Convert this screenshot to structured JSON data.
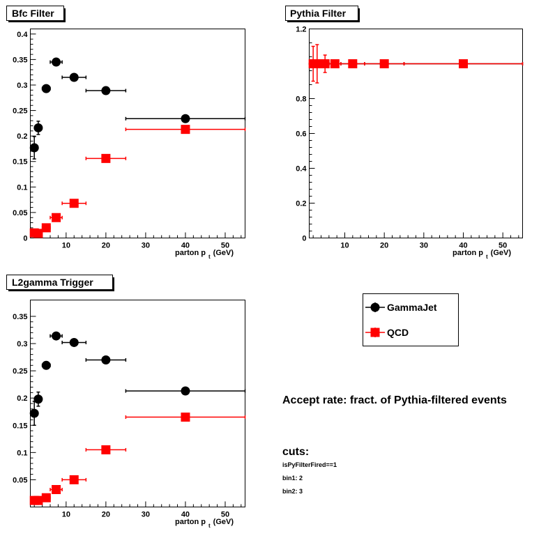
{
  "chart_data": [
    {
      "type": "scatter",
      "title": "Bfc Filter",
      "xlabel": "parton p",
      "xlabel_sub": "t",
      "xlabel_unit": "(GeV)",
      "ylabel": "",
      "xlim": [
        1,
        55
      ],
      "ylim": [
        0,
        0.41
      ],
      "xticks": [
        10,
        20,
        30,
        40,
        50
      ],
      "yticks": [
        0,
        0.05,
        0.1,
        0.15,
        0.2,
        0.25,
        0.3,
        0.35,
        0.4
      ],
      "ytick_labels": [
        "0",
        "0.05",
        "0.1",
        "0.15",
        "0.2",
        "0.25",
        "0.3",
        "0.35",
        "0.4"
      ],
      "series": [
        {
          "name": "GammaJet",
          "marker": "circle",
          "color": "#000000",
          "points": [
            {
              "x": 2.0,
              "xlo": 1.5,
              "xhi": 2.5,
              "y": 0.177,
              "yerr": 0.022
            },
            {
              "x": 3.0,
              "xlo": 2.5,
              "xhi": 3.5,
              "y": 0.216,
              "yerr": 0.013
            },
            {
              "x": 5.0,
              "xlo": 4.0,
              "xhi": 6.0,
              "y": 0.293,
              "yerr": 0.005
            },
            {
              "x": 7.5,
              "xlo": 6.0,
              "xhi": 9.0,
              "y": 0.345,
              "yerr": 0.004
            },
            {
              "x": 12.0,
              "xlo": 9.0,
              "xhi": 15.0,
              "y": 0.315,
              "yerr": 0.004
            },
            {
              "x": 20.0,
              "xlo": 15.0,
              "xhi": 25.0,
              "y": 0.289,
              "yerr": 0.003
            },
            {
              "x": 40.0,
              "xlo": 25.0,
              "xhi": 55.0,
              "y": 0.234,
              "yerr": 0.002
            }
          ]
        },
        {
          "name": "QCD",
          "marker": "square",
          "color": "#ff0000",
          "points": [
            {
              "x": 2.0,
              "xlo": 1.5,
              "xhi": 2.5,
              "y": 0.01,
              "yerr": 0.002
            },
            {
              "x": 3.0,
              "xlo": 2.5,
              "xhi": 3.5,
              "y": 0.009,
              "yerr": 0.002
            },
            {
              "x": 5.0,
              "xlo": 4.0,
              "xhi": 6.0,
              "y": 0.02,
              "yerr": 0.002
            },
            {
              "x": 7.5,
              "xlo": 6.0,
              "xhi": 9.0,
              "y": 0.04,
              "yerr": 0.003
            },
            {
              "x": 12.0,
              "xlo": 9.0,
              "xhi": 15.0,
              "y": 0.068,
              "yerr": 0.003
            },
            {
              "x": 20.0,
              "xlo": 15.0,
              "xhi": 25.0,
              "y": 0.156,
              "yerr": 0.003
            },
            {
              "x": 40.0,
              "xlo": 25.0,
              "xhi": 55.0,
              "y": 0.213,
              "yerr": 0.002
            }
          ]
        }
      ]
    },
    {
      "type": "scatter",
      "title": "Pythia Filter",
      "xlabel": "parton p",
      "xlabel_sub": "t",
      "xlabel_unit": "(GeV)",
      "ylabel": "",
      "xlim": [
        1,
        55
      ],
      "ylim": [
        0,
        1.2
      ],
      "xticks": [
        10,
        20,
        30,
        40,
        50
      ],
      "yticks": [
        0,
        0.2,
        0.4,
        0.6,
        0.8,
        1.2
      ],
      "ytick_labels": [
        "0",
        "0.2",
        "0.4",
        "0.6",
        "0.8",
        "1.2"
      ],
      "series": [
        {
          "name": "GammaJet",
          "marker": "circle",
          "color": "#000000",
          "points": [
            {
              "x": 2.0,
              "xlo": 1.5,
              "xhi": 2.5,
              "y": 1.0,
              "yerr": 0.0
            },
            {
              "x": 3.0,
              "xlo": 2.5,
              "xhi": 3.5,
              "y": 1.0,
              "yerr": 0.0
            },
            {
              "x": 5.0,
              "xlo": 4.0,
              "xhi": 6.0,
              "y": 1.0,
              "yerr": 0.0
            },
            {
              "x": 7.5,
              "xlo": 6.0,
              "xhi": 9.0,
              "y": 1.0,
              "yerr": 0.0
            },
            {
              "x": 12.0,
              "xlo": 9.0,
              "xhi": 15.0,
              "y": 1.0,
              "yerr": 0.0
            },
            {
              "x": 20.0,
              "xlo": 15.0,
              "xhi": 25.0,
              "y": 1.0,
              "yerr": 0.0
            },
            {
              "x": 40.0,
              "xlo": 25.0,
              "xhi": 55.0,
              "y": 1.0,
              "yerr": 0.0
            }
          ]
        },
        {
          "name": "QCD",
          "marker": "square",
          "color": "#ff0000",
          "points": [
            {
              "x": 2.0,
              "xlo": 1.5,
              "xhi": 2.5,
              "y": 1.0,
              "yerr": 0.1
            },
            {
              "x": 3.0,
              "xlo": 2.5,
              "xhi": 3.5,
              "y": 1.0,
              "yerr": 0.11
            },
            {
              "x": 5.0,
              "xlo": 4.0,
              "xhi": 6.0,
              "y": 1.0,
              "yerr": 0.05
            },
            {
              "x": 7.5,
              "xlo": 6.0,
              "xhi": 9.0,
              "y": 1.0,
              "yerr": 0.01
            },
            {
              "x": 12.0,
              "xlo": 9.0,
              "xhi": 15.0,
              "y": 1.0,
              "yerr": 0.005
            },
            {
              "x": 20.0,
              "xlo": 15.0,
              "xhi": 25.0,
              "y": 1.0,
              "yerr": 0.003
            },
            {
              "x": 40.0,
              "xlo": 25.0,
              "xhi": 55.0,
              "y": 1.0,
              "yerr": 0.002
            }
          ]
        }
      ]
    },
    {
      "type": "scatter",
      "title": "L2gamma Trigger",
      "xlabel": "parton p",
      "xlabel_sub": "t",
      "xlabel_unit": "(GeV)",
      "ylabel": "",
      "xlim": [
        1,
        55
      ],
      "ylim": [
        0.0,
        0.38
      ],
      "xticks": [
        10,
        20,
        30,
        40,
        50
      ],
      "yticks": [
        0.05,
        0.1,
        0.15,
        0.2,
        0.25,
        0.3,
        0.35
      ],
      "ytick_labels": [
        "0.05",
        "0.1",
        "0.15",
        "0.2",
        "0.25",
        "0.3",
        "0.35"
      ],
      "series": [
        {
          "name": "GammaJet",
          "marker": "circle",
          "color": "#000000",
          "points": [
            {
              "x": 2.0,
              "xlo": 1.5,
              "xhi": 2.5,
              "y": 0.172,
              "yerr": 0.022
            },
            {
              "x": 3.0,
              "xlo": 2.5,
              "xhi": 3.5,
              "y": 0.198,
              "yerr": 0.013
            },
            {
              "x": 5.0,
              "xlo": 4.0,
              "xhi": 6.0,
              "y": 0.26,
              "yerr": 0.005
            },
            {
              "x": 7.5,
              "xlo": 6.0,
              "xhi": 9.0,
              "y": 0.314,
              "yerr": 0.004
            },
            {
              "x": 12.0,
              "xlo": 9.0,
              "xhi": 15.0,
              "y": 0.302,
              "yerr": 0.004
            },
            {
              "x": 20.0,
              "xlo": 15.0,
              "xhi": 25.0,
              "y": 0.27,
              "yerr": 0.003
            },
            {
              "x": 40.0,
              "xlo": 25.0,
              "xhi": 55.0,
              "y": 0.213,
              "yerr": 0.002
            }
          ]
        },
        {
          "name": "QCD",
          "marker": "square",
          "color": "#ff0000",
          "points": [
            {
              "x": 2.0,
              "xlo": 1.5,
              "xhi": 2.5,
              "y": 0.012,
              "yerr": 0.002
            },
            {
              "x": 3.0,
              "xlo": 2.5,
              "xhi": 3.5,
              "y": 0.012,
              "yerr": 0.002
            },
            {
              "x": 5.0,
              "xlo": 4.0,
              "xhi": 6.0,
              "y": 0.017,
              "yerr": 0.002
            },
            {
              "x": 7.5,
              "xlo": 6.0,
              "xhi": 9.0,
              "y": 0.032,
              "yerr": 0.003
            },
            {
              "x": 12.0,
              "xlo": 9.0,
              "xhi": 15.0,
              "y": 0.05,
              "yerr": 0.003
            },
            {
              "x": 20.0,
              "xlo": 15.0,
              "xhi": 25.0,
              "y": 0.105,
              "yerr": 0.003
            },
            {
              "x": 40.0,
              "xlo": 25.0,
              "xhi": 55.0,
              "y": 0.165,
              "yerr": 0.002
            }
          ]
        }
      ]
    }
  ],
  "legend": {
    "entries": [
      {
        "label": "GammaJet",
        "marker": "circle",
        "color": "#000000"
      },
      {
        "label": "QCD",
        "marker": "square",
        "color": "#ff0000"
      }
    ]
  },
  "notes": {
    "accept_rate": "Accept rate: fract. of Pythia-filtered events",
    "cuts_title": "cuts:",
    "cut_lines": [
      "isPyFilterFired==1",
      "bin1: 2",
      "bin2: 3"
    ]
  }
}
